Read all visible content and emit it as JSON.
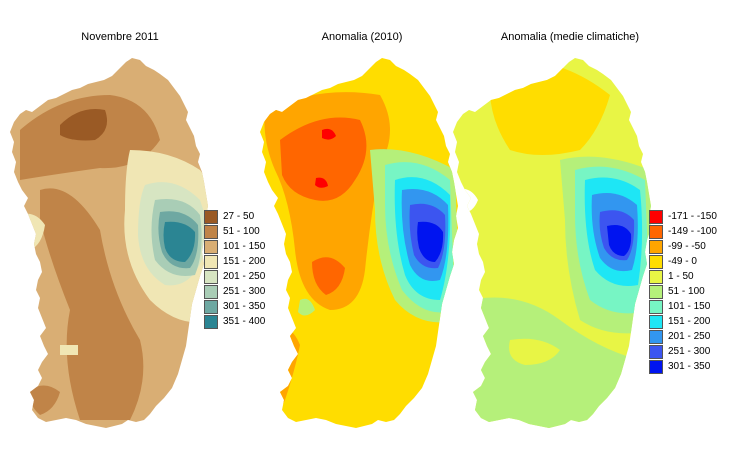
{
  "titles": [
    "Novembre 2011",
    "Anomalia (2010)",
    "Anomalia (medie climatiche)"
  ],
  "legend_rainfall": [
    {
      "label": "27 - 50",
      "color": "#9a5a25"
    },
    {
      "label": "51 - 100",
      "color": "#c08448"
    },
    {
      "label": "101 - 150",
      "color": "#d9ae74"
    },
    {
      "label": "151 - 200",
      "color": "#f0e6b4"
    },
    {
      "label": "201 - 250",
      "color": "#d7e5c2"
    },
    {
      "label": "251 - 300",
      "color": "#a9cdb6"
    },
    {
      "label": "301 - 350",
      "color": "#6ea8a2"
    },
    {
      "label": "351 - 400",
      "color": "#2b8593"
    }
  ],
  "legend_anomaly": [
    {
      "label": "-171 - -150",
      "color": "#ff0000"
    },
    {
      "label": "-149 - -100",
      "color": "#ff6600"
    },
    {
      "label": "-99 - -50",
      "color": "#ffa500"
    },
    {
      "label": "-49 - 0",
      "color": "#ffdd00"
    },
    {
      "label": "1 - 50",
      "color": "#e8f545"
    },
    {
      "label": "51 - 100",
      "color": "#b5f07a"
    },
    {
      "label": "101 - 150",
      "color": "#77f5c4"
    },
    {
      "label": "151 - 200",
      "color": "#1ee6f5"
    },
    {
      "label": "201 - 250",
      "color": "#3296f0"
    },
    {
      "label": "251 - 300",
      "color": "#3c55f0"
    },
    {
      "label": "301 - 350",
      "color": "#0014f0"
    }
  ]
}
